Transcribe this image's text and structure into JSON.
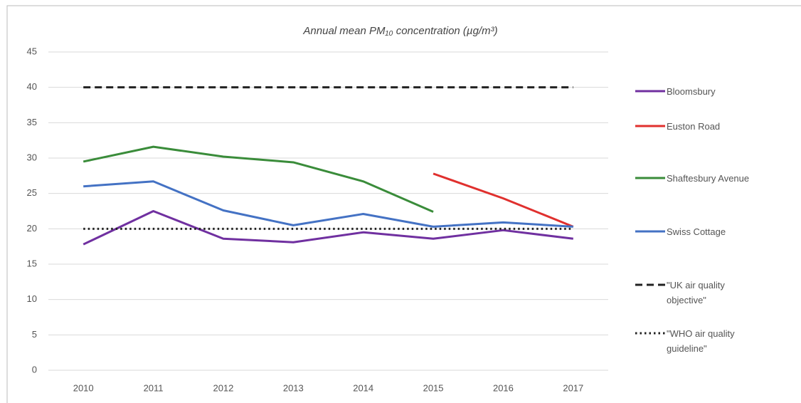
{
  "chart_data": {
    "type": "line",
    "title": "Annual mean PM₁₀ concentration (µg/m³)",
    "categories": [
      "2010",
      "2011",
      "2012",
      "2013",
      "2014",
      "2015",
      "2016",
      "2017"
    ],
    "series": [
      {
        "name": "Bloomsbury",
        "color": "#7030a0",
        "values": [
          17.8,
          22.5,
          18.6,
          18.1,
          19.5,
          18.6,
          19.8,
          18.6
        ]
      },
      {
        "name": "Euston Road",
        "color": "#e0302e",
        "values": [
          null,
          null,
          null,
          null,
          null,
          27.8,
          24.3,
          20.3
        ]
      },
      {
        "name": "Shaftesbury Avenue",
        "color": "#3a8c3a",
        "values": [
          29.5,
          31.6,
          30.2,
          29.4,
          26.7,
          22.4,
          null,
          null
        ]
      },
      {
        "name": "Swiss Cottage",
        "color": "#4472c4",
        "values": [
          26.0,
          26.7,
          22.6,
          20.5,
          22.1,
          20.3,
          20.9,
          20.3
        ]
      },
      {
        "name": "\"UK air quality objective\"",
        "color": "#222222",
        "dash": "dashed",
        "values": [
          40,
          40,
          40,
          40,
          40,
          40,
          40,
          40
        ]
      },
      {
        "name": "\"WHO air quality guideline\"",
        "color": "#222222",
        "dash": "dotted",
        "values": [
          20,
          20,
          20,
          20,
          20,
          20,
          20,
          20
        ]
      }
    ],
    "ylim": [
      0,
      45
    ],
    "yticks": [
      0,
      5,
      10,
      15,
      20,
      25,
      30,
      35,
      40,
      45
    ],
    "grid": true
  }
}
